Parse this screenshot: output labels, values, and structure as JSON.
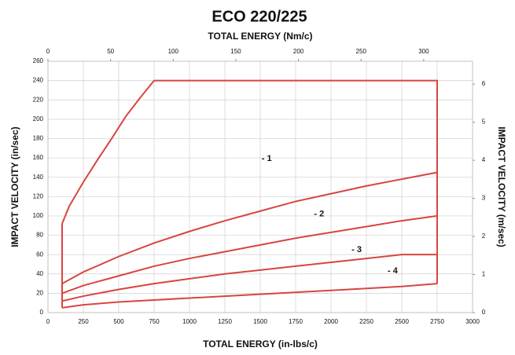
{
  "chart_data": {
    "type": "line",
    "title": "ECO 220/225",
    "x_label": "TOTAL ENERGY (in-lbs/c)",
    "x2_label": "TOTAL ENERGY (Nm/c)",
    "y_label": "IMPACT VELOCITY (in/sec)",
    "y2_label": "IMPACT VELOCITY (m/sec)",
    "xlim": [
      0,
      3000
    ],
    "xticks": [
      0,
      250,
      500,
      750,
      1000,
      1250,
      1500,
      1750,
      2000,
      2250,
      2500,
      2750,
      3000
    ],
    "x2lim": [
      0,
      339
    ],
    "x2ticks": [
      0,
      50,
      100,
      150,
      200,
      250,
      300
    ],
    "ylim": [
      0,
      260
    ],
    "yticks": [
      0,
      20,
      40,
      60,
      80,
      100,
      120,
      140,
      160,
      180,
      200,
      220,
      240,
      260
    ],
    "y2lim": [
      0,
      6.6
    ],
    "y2ticks": [
      0,
      1,
      2,
      3,
      4,
      5,
      6
    ],
    "grid": true,
    "color": "#d8453f",
    "series": [
      {
        "x": [
          100,
          150,
          250,
          350,
          450,
          550,
          650,
          750,
          2750,
          2750
        ],
        "values": [
          92,
          110,
          135,
          158,
          180,
          203,
          222,
          240,
          240,
          30
        ]
      },
      {
        "x": [
          100,
          100
        ],
        "values": [
          5,
          92
        ]
      },
      {
        "x": [
          100,
          250,
          500,
          750,
          1000,
          1250,
          1500,
          1750,
          2000,
          2250,
          2500,
          2750
        ],
        "values": [
          30,
          42,
          58,
          72,
          84,
          95,
          105,
          115,
          123,
          131,
          138,
          145
        ]
      },
      {
        "x": [
          100,
          250,
          500,
          750,
          1000,
          1250,
          1500,
          1750,
          2000,
          2250,
          2500,
          2750
        ],
        "values": [
          20,
          28,
          38,
          48,
          56,
          63,
          70,
          77,
          83,
          89,
          95,
          100
        ]
      },
      {
        "x": [
          100,
          250,
          500,
          750,
          1000,
          1250,
          1500,
          1750,
          2000,
          2250,
          2500,
          2750
        ],
        "values": [
          12,
          17,
          24,
          30,
          35,
          40,
          44,
          48,
          52,
          56,
          60,
          60
        ]
      },
      {
        "x": [
          100,
          250,
          500,
          1000,
          1500,
          2000,
          2500,
          2750
        ],
        "values": [
          5,
          8,
          11,
          15,
          19,
          23,
          27,
          30
        ]
      }
    ],
    "annotations": [
      {
        "text": "- 1",
        "x": 1510,
        "y": 159
      },
      {
        "text": "- 2",
        "x": 1880,
        "y": 102
      },
      {
        "text": "- 3",
        "x": 2145,
        "y": 65
      },
      {
        "text": "- 4",
        "x": 2400,
        "y": 43
      }
    ]
  }
}
